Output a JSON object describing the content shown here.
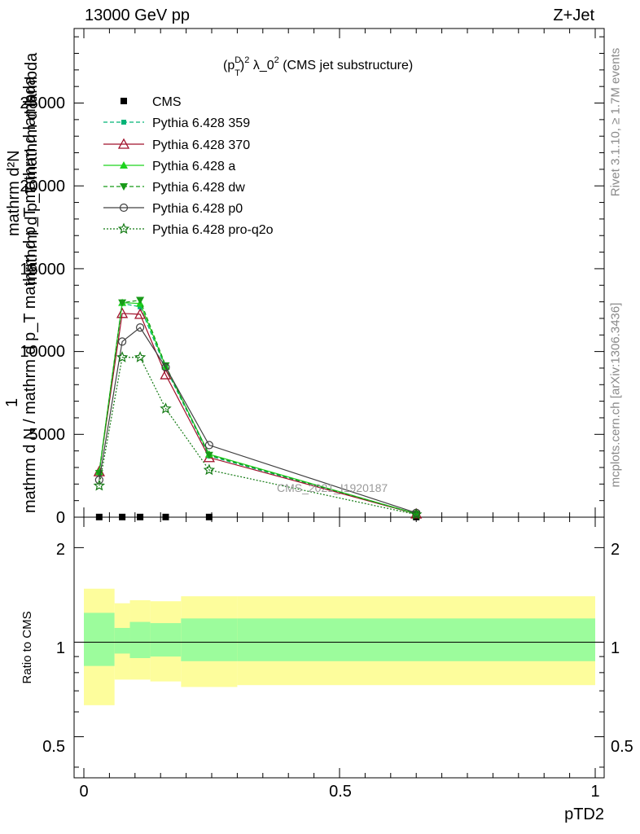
{
  "header": {
    "left": "13000 GeV pp",
    "right": "Z+Jet"
  },
  "side_labels": {
    "rivet": "Rivet 3.1.10, ≥ 1.7M events",
    "mcplots": "mcplots.cern.ch [arXiv:1306.3436]"
  },
  "plot_title": {
    "pre": "(p",
    "sup_d": "D",
    "sub_t": "T",
    "sup_2": "2",
    "mid": " λ_0",
    "sup_2b": "2",
    "post": " (CMS jet substructure)"
  },
  "watermark": "CMS_2021_I1920187",
  "ylabel_main": {
    "frac_one": "1",
    "num_sigma": "mathrm d²N",
    "den_sigma": "mathrm d p_T mathrm d lambda",
    "denominator": "mathrm d N / mathrm d p_T mathrm d p_T mathrm d lambda"
  },
  "ylabel_ratio": "Ratio to CMS",
  "xlabel": "pTD2",
  "main_ticks": {
    "y": [
      "0",
      "5000",
      "10000",
      "15000",
      "20000",
      "25000"
    ]
  },
  "ratio_ticks": {
    "y": [
      "0.5",
      "1",
      "2"
    ],
    "y_right": [
      "0.5",
      "1",
      "2"
    ]
  },
  "x_ticks": [
    "0",
    "0.5",
    "1"
  ],
  "legend": [
    {
      "label": "CMS"
    },
    {
      "label": "Pythia 6.428 359"
    },
    {
      "label": "Pythia 6.428 370"
    },
    {
      "label": "Pythia 6.428 a"
    },
    {
      "label": "Pythia 6.428 dw"
    },
    {
      "label": "Pythia 6.428 p0"
    },
    {
      "label": "Pythia 6.428 pro-q2o"
    }
  ],
  "chart_data": {
    "type": "line",
    "xlabel": "pTD2",
    "x_range": [
      0,
      1
    ],
    "main_ylim": [
      0,
      29500
    ],
    "ratio_ylim": [
      0.37,
      2.5
    ],
    "ratio_log_scale": true,
    "x": [
      0.03,
      0.075,
      0.11,
      0.16,
      0.245,
      0.65
    ],
    "series": [
      {
        "name": "CMS",
        "color": "#000000",
        "marker": "square",
        "line": "none",
        "values": [
          10,
          10,
          10,
          10,
          10,
          10
        ]
      },
      {
        "name": "Pythia 6.428 359",
        "color": "#00b377",
        "marker": "square-small",
        "line": "dashed",
        "values": [
          2700,
          12900,
          12700,
          9000,
          3700,
          200
        ]
      },
      {
        "name": "Pythia 6.428 370",
        "color": "#a0102a",
        "marker": "triangle-open",
        "line": "solid",
        "values": [
          2750,
          12300,
          12250,
          8600,
          3600,
          200
        ]
      },
      {
        "name": "Pythia 6.428 a",
        "color": "#1ed31e",
        "marker": "triangle",
        "line": "solid",
        "values": [
          2750,
          12950,
          12900,
          9100,
          3800,
          210
        ]
      },
      {
        "name": "Pythia 6.428 dw",
        "color": "#189a18",
        "marker": "triangle-down",
        "line": "dashed",
        "values": [
          2650,
          12950,
          13100,
          9150,
          3750,
          200
        ]
      },
      {
        "name": "Pythia 6.428 p0",
        "color": "#404040",
        "marker": "circle-open",
        "line": "solid",
        "values": [
          2250,
          10600,
          11450,
          9050,
          4350,
          260
        ]
      },
      {
        "name": "Pythia 6.428 pro-q2o",
        "color": "#137a13",
        "marker": "star",
        "line": "dotted",
        "values": [
          1900,
          9650,
          9650,
          6550,
          2850,
          160
        ]
      }
    ],
    "ratio_bands": {
      "edges": [
        0.0,
        0.06,
        0.09,
        0.13,
        0.19,
        0.3,
        1.0
      ],
      "yellow": [
        [
          0.63,
          1.48
        ],
        [
          0.76,
          1.33
        ],
        [
          0.76,
          1.36
        ],
        [
          0.75,
          1.35
        ],
        [
          0.72,
          1.4
        ],
        [
          0.73,
          1.4
        ]
      ],
      "green": [
        [
          0.84,
          1.24
        ],
        [
          0.92,
          1.11
        ],
        [
          0.89,
          1.16
        ],
        [
          0.9,
          1.15
        ],
        [
          0.87,
          1.19
        ],
        [
          0.87,
          1.19
        ]
      ]
    },
    "colors": {
      "yellow_band": "#fdfd9c",
      "green_band": "#9cfc9c"
    }
  }
}
